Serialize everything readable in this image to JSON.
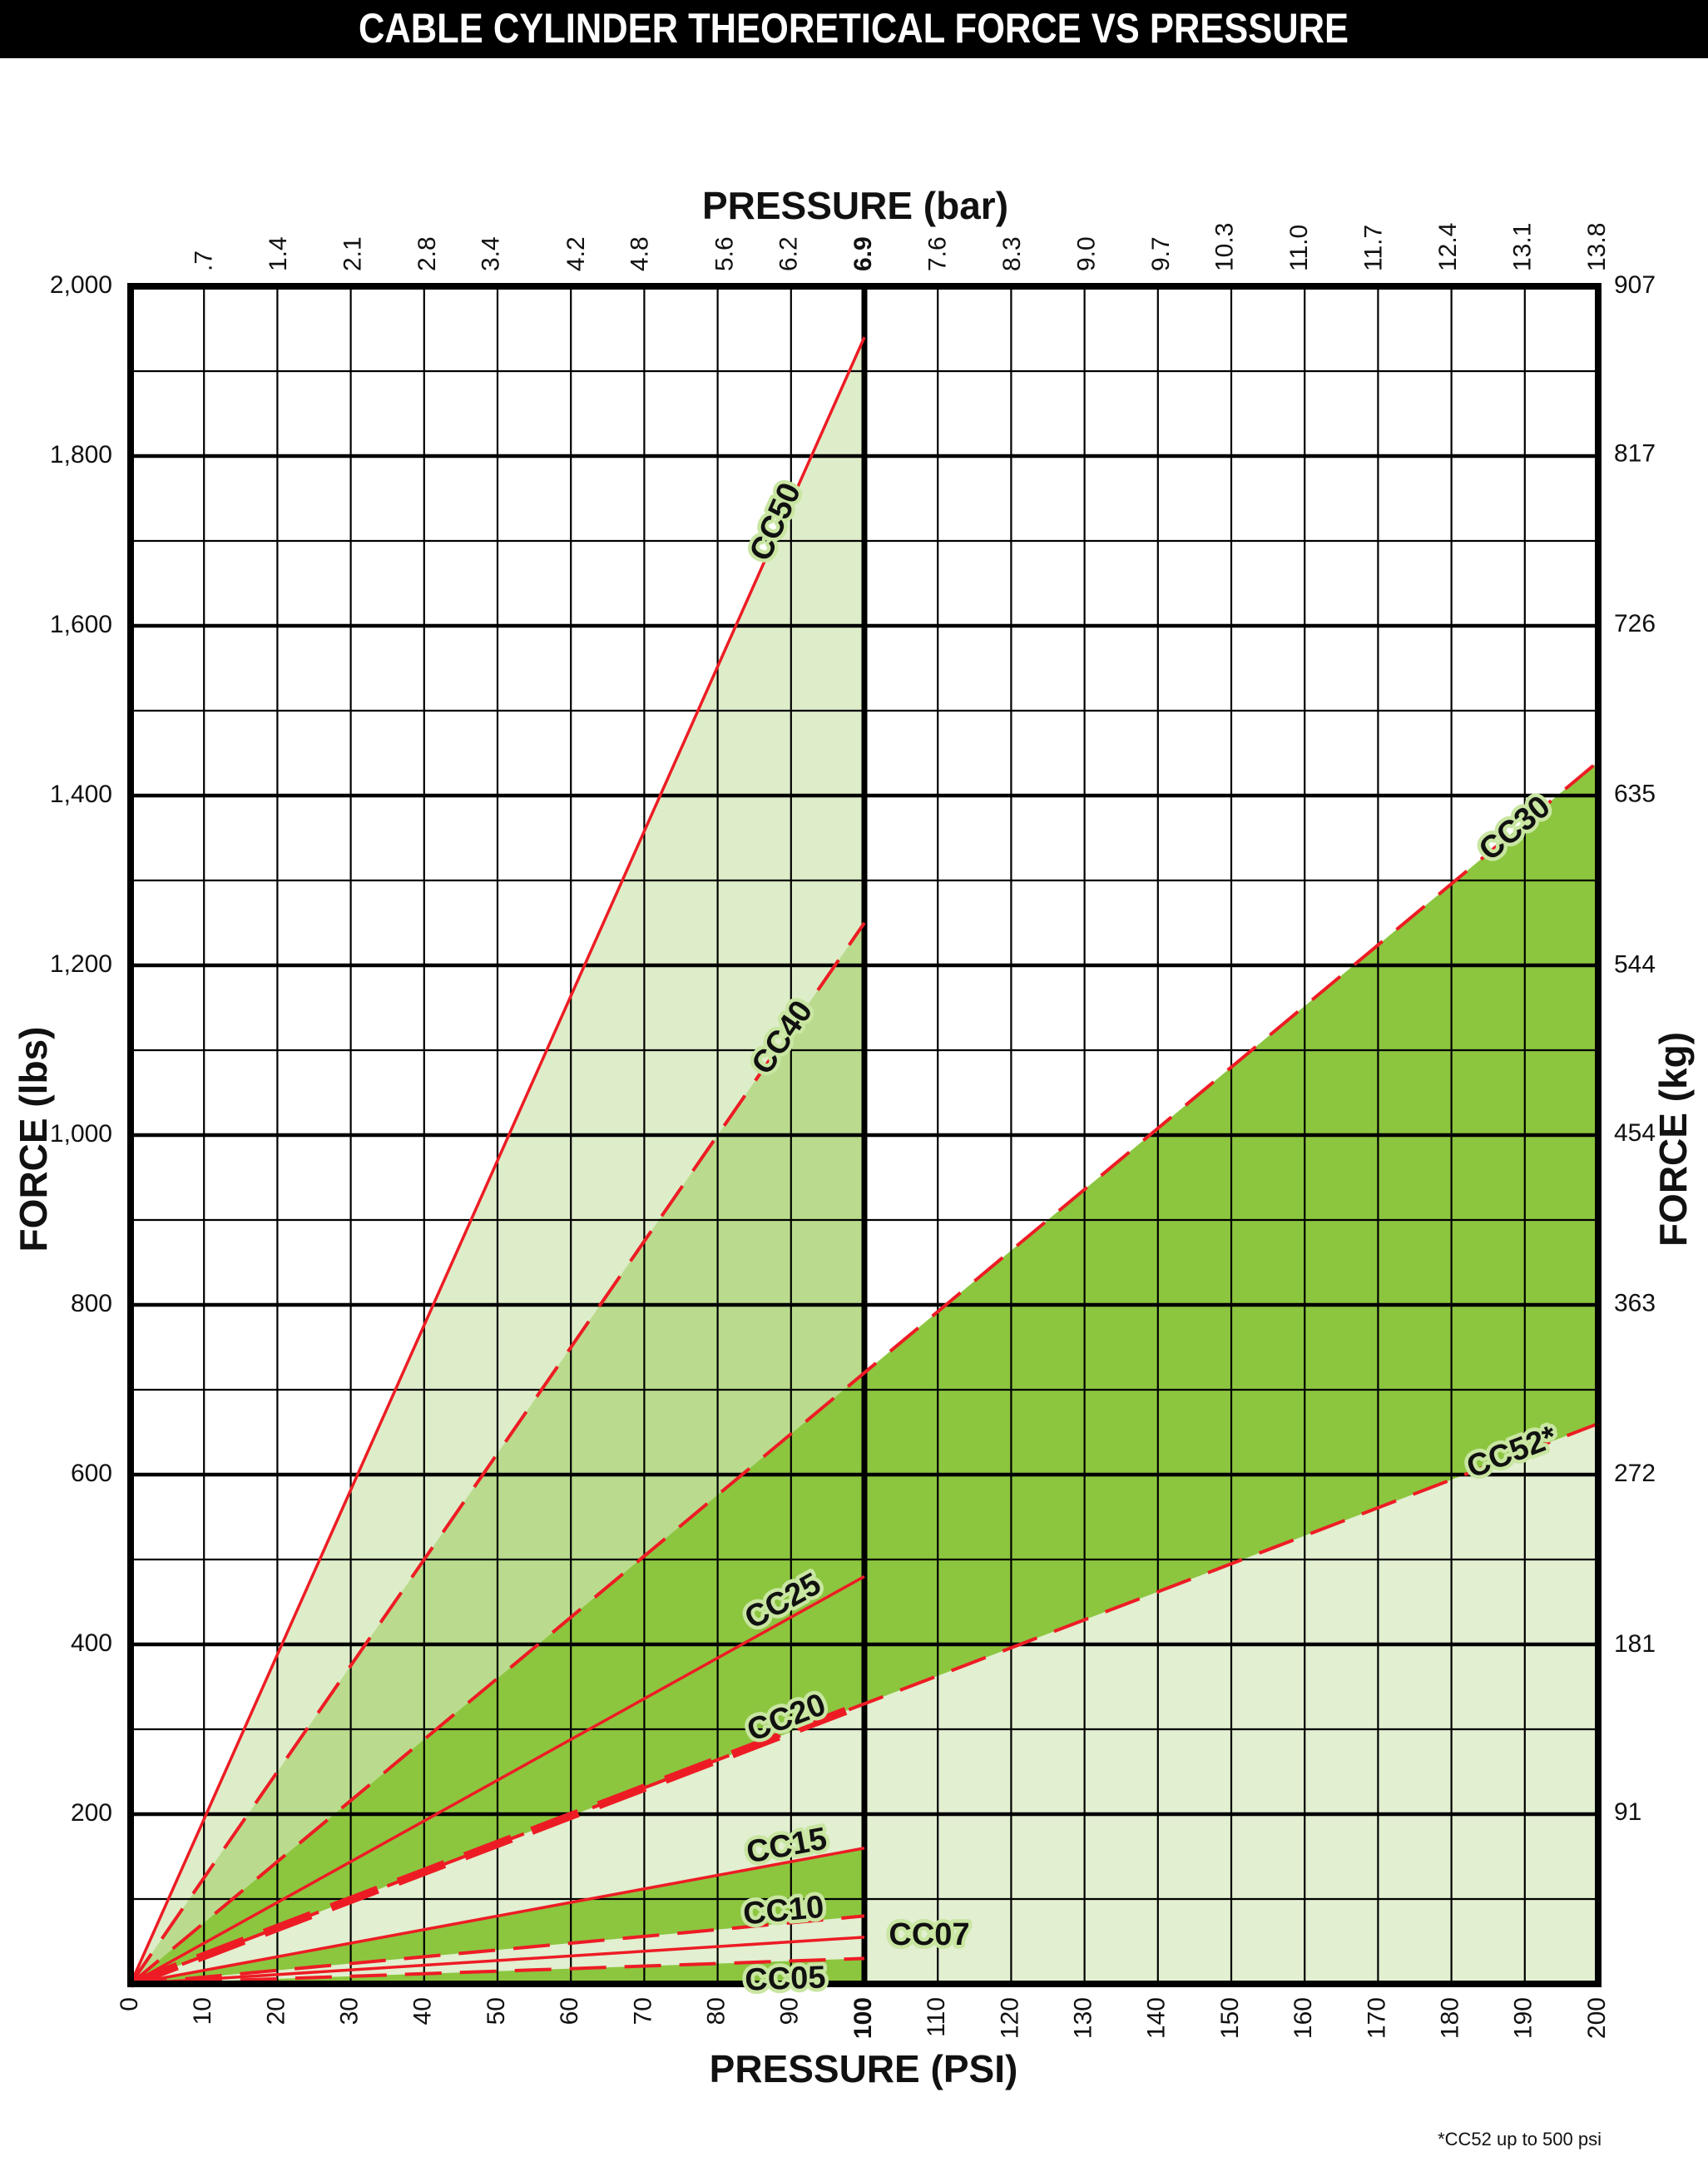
{
  "chart_data": {
    "type": "line",
    "title": "CABLE CYLINDER THEORETICAL FORCE VS PRESSURE",
    "x_label": "PRESSURE (PSI)",
    "x2_label": "PRESSURE (bar)",
    "y_label": "FORCE (lbs)",
    "y2_label": "FORCE (kg)",
    "footnote": "*CC52 up to 500 psi",
    "xlim": [
      0,
      200
    ],
    "xticks": [
      0,
      10,
      20,
      30,
      40,
      50,
      60,
      70,
      80,
      90,
      100,
      110,
      120,
      130,
      140,
      150,
      160,
      170,
      180,
      190,
      200
    ],
    "highlight_x": 100,
    "x2lim": [
      0,
      13.8
    ],
    "x2ticks": [
      {
        "value": 0.7,
        "label": ".7"
      },
      1.4,
      2.1,
      2.8,
      3.4,
      4.2,
      4.8,
      5.6,
      6.2,
      6.9,
      7.6,
      8.3,
      {
        "value": 9,
        "label": "9.0"
      },
      9.7,
      10.3,
      {
        "value": 11,
        "label": "11.0"
      },
      11.7,
      12.4,
      13.1,
      13.8
    ],
    "ylim": [
      0,
      2000
    ],
    "yticks": [
      200,
      400,
      600,
      800,
      {
        "value": 1000,
        "label": "1,000"
      },
      {
        "value": 1200,
        "label": "1,200"
      },
      {
        "value": 1400,
        "label": "1,400"
      },
      {
        "value": 1600,
        "label": "1,600"
      },
      {
        "value": 1800,
        "label": "1,800"
      },
      {
        "value": 2000,
        "label": "2,000"
      }
    ],
    "y_minor_ticks": [
      100,
      300,
      500,
      700,
      900,
      1100,
      1300,
      1500,
      1700,
      1900
    ],
    "y2lim": [
      0,
      907
    ],
    "y2ticks": [
      91,
      181,
      272,
      363,
      454,
      544,
      635,
      726,
      817,
      907
    ],
    "grid": true,
    "series": [
      {
        "name": "CC50",
        "color": "#ed1c24",
        "line_style": "solid",
        "fill": "#deedc9",
        "x": [
          0,
          100
        ],
        "values": [
          0,
          1940
        ]
      },
      {
        "name": "CC40",
        "color": "#ed1c24",
        "line_style": "dashed",
        "fill": "#badb8d",
        "x": [
          0,
          100
        ],
        "values": [
          0,
          1250
        ]
      },
      {
        "name": "CC30",
        "color": "#ed1c24",
        "line_style": "dashed",
        "fill": "#8cc63f",
        "x": [
          0,
          200
        ],
        "values": [
          0,
          1440
        ]
      },
      {
        "name": "CC52*",
        "color": "#ed1c24",
        "line_style": "dashed",
        "fill": "#e2efd1",
        "x": [
          0,
          200
        ],
        "values": [
          0,
          660
        ]
      },
      {
        "name": "CC25",
        "color": "#ed1c24",
        "line_style": "solid",
        "fill": "#8cc63f",
        "x": [
          0,
          100
        ],
        "values": [
          0,
          480
        ]
      },
      {
        "name": "CC20",
        "color": "#ed1c24",
        "line_style": "bold-dashed",
        "fill": "#e2efd1",
        "x": [
          0,
          100
        ],
        "values": [
          0,
          330
        ]
      },
      {
        "name": "CC15",
        "color": "#ed1c24",
        "line_style": "solid",
        "fill": "#8cc63f",
        "x": [
          0,
          100
        ],
        "values": [
          0,
          160
        ]
      },
      {
        "name": "CC10",
        "color": "#ed1c24",
        "line_style": "dashed",
        "fill": "#e2efd1",
        "x": [
          0,
          100
        ],
        "values": [
          0,
          80
        ]
      },
      {
        "name": "CC07",
        "color": "#ed1c24",
        "line_style": "solid",
        "fill": "#e2efd1",
        "x": [
          0,
          100
        ],
        "values": [
          0,
          55
        ]
      },
      {
        "name": "CC05",
        "color": "#ed1c24",
        "line_style": "dashed",
        "fill": "#8cc63f",
        "x": [
          0,
          100
        ],
        "values": [
          0,
          30
        ]
      }
    ]
  }
}
